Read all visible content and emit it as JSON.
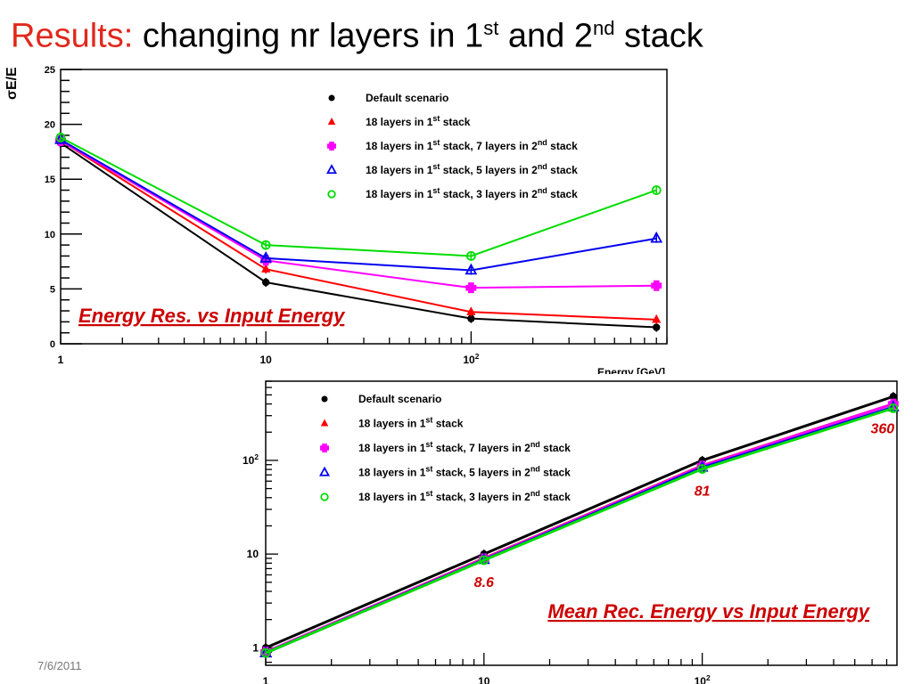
{
  "slide": {
    "title_prefix": "Results:",
    "title_part1": "changing nr layers in 1",
    "title_sup1": "st",
    "title_part2": " and 2",
    "title_sup2": "nd",
    "title_part3": " stack",
    "date": "7/6/2011"
  },
  "colors": {
    "default": "#000000",
    "l18": "#ff0000",
    "l18_7": "#ff00ff",
    "l18_5": "#0000ee",
    "l18_3": "#00dd00",
    "annotation": "#cc0000"
  },
  "chart_data": [
    {
      "type": "line",
      "annotation": "Energy Res. vs Input  Energy",
      "title": "",
      "xlabel": "Energy [GeV]",
      "ylabel": "σE/E",
      "xscale": "log",
      "xlim": [
        1,
        900
      ],
      "ylim": [
        0,
        25
      ],
      "x_ticklabels": [
        {
          "v": 1,
          "base": "1",
          "sup": ""
        },
        {
          "v": 10,
          "base": "10",
          "sup": ""
        },
        {
          "v": 100,
          "base": "10",
          "sup": "2"
        }
      ],
      "y_ticks": [
        0,
        5,
        10,
        15,
        20,
        25
      ],
      "legend_position": "top-right",
      "x": [
        1,
        10,
        100,
        800
      ],
      "series": [
        {
          "key": "default",
          "name": "Default scenario",
          "marker": "dot",
          "values": [
            18.3,
            5.6,
            2.3,
            1.5
          ]
        },
        {
          "key": "l18",
          "name": "18 layers in 1",
          "name_sup": "st",
          "name_tail": " stack",
          "marker": "triangle",
          "values": [
            18.5,
            6.8,
            2.9,
            2.2
          ]
        },
        {
          "key": "l18_7",
          "name": "18 layers in 1",
          "name_sup": "st",
          "name_tail": " stack, 7 layers in  2",
          "name_sup2": "nd",
          "name_tail2": " stack",
          "marker": "cross",
          "values": [
            18.5,
            7.6,
            5.1,
            5.3
          ]
        },
        {
          "key": "l18_5",
          "name": "18 layers in 1",
          "name_sup": "st",
          "name_tail": " stack, 5 layers in  2",
          "name_sup2": "nd",
          "name_tail2": " stack",
          "marker": "open-triangle",
          "values": [
            18.6,
            7.8,
            6.7,
            9.6
          ]
        },
        {
          "key": "l18_3",
          "name": "18 layers in 1",
          "name_sup": "st",
          "name_tail": " stack, 3 layers in  2",
          "name_sup2": "nd",
          "name_tail2": " stack",
          "marker": "open-circle",
          "values": [
            18.8,
            9.0,
            8.0,
            14.0
          ]
        }
      ]
    },
    {
      "type": "line",
      "annotation": "Mean Rec. Energy vs Input  Energy",
      "title": "",
      "xlabel": "",
      "ylabel": "",
      "xscale": "log",
      "yscale": "log",
      "xlim": [
        1,
        780
      ],
      "ylim": [
        0.65,
        700
      ],
      "x_ticklabels": [
        {
          "v": 1,
          "base": "1",
          "sup": ""
        },
        {
          "v": 10,
          "base": "10",
          "sup": ""
        },
        {
          "v": 100,
          "base": "10",
          "sup": "2"
        }
      ],
      "y_ticklabels": [
        {
          "v": 1,
          "base": "1",
          "sup": ""
        },
        {
          "v": 10,
          "base": "10",
          "sup": ""
        },
        {
          "v": 100,
          "base": "10",
          "sup": "2"
        }
      ],
      "legend_position": "top-left",
      "x": [
        1,
        10,
        100,
        750
      ],
      "value_labels": [
        {
          "x": 10,
          "y": 8.6,
          "text": "8.6"
        },
        {
          "x": 100,
          "y": 81,
          "text": "81"
        },
        {
          "x": 750,
          "y": 360,
          "text": "360"
        }
      ],
      "series": [
        {
          "key": "default",
          "name": "Default scenario",
          "marker": "dot",
          "values": [
            1.0,
            10.0,
            100.0,
            480
          ]
        },
        {
          "key": "l18",
          "name": "18 layers in 1",
          "name_sup": "st",
          "name_tail": " stack",
          "marker": "triangle",
          "values": [
            0.9,
            9.0,
            88,
            400
          ]
        },
        {
          "key": "l18_7",
          "name": "18 layers in 1",
          "name_sup": "st",
          "name_tail": " stack, 7 layers in  2",
          "name_sup2": "nd",
          "name_tail2": " stack",
          "marker": "cross",
          "values": [
            0.9,
            8.9,
            87,
            400
          ]
        },
        {
          "key": "l18_5",
          "name": "18 layers in 1",
          "name_sup": "st",
          "name_tail": " stack, 5 layers in  2",
          "name_sup2": "nd",
          "name_tail2": " stack",
          "marker": "open-triangle",
          "values": [
            0.88,
            8.7,
            84,
            370
          ]
        },
        {
          "key": "l18_3",
          "name": "18 layers in 1",
          "name_sup": "st",
          "name_tail": " stack, 3 layers in  2",
          "name_sup2": "nd",
          "name_tail2": " stack",
          "marker": "open-circle",
          "values": [
            0.88,
            8.6,
            81,
            360
          ]
        }
      ]
    }
  ]
}
